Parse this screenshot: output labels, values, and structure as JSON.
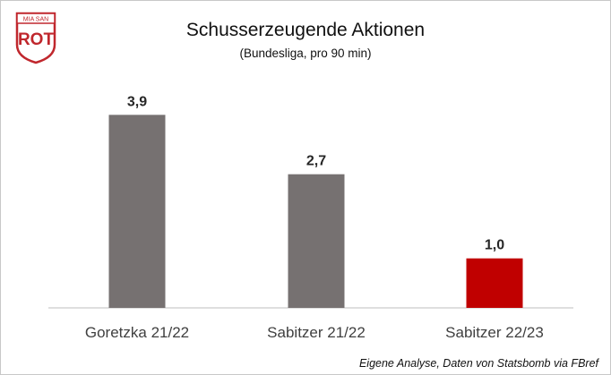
{
  "logo": {
    "top_text": "MIA SAN",
    "main_text": "ROT",
    "color": "#c0272d"
  },
  "chart_data": {
    "type": "bar",
    "title": "Schusserzeugende Aktionen",
    "subtitle": "(Bundesliga, pro 90 min)",
    "categories": [
      "Goretzka 21/22",
      "Sabitzer 21/22",
      "Sabitzer 22/23"
    ],
    "values": [
      3.9,
      2.7,
      1.0
    ],
    "value_labels": [
      "3,9",
      "2,7",
      "1,0"
    ],
    "colors": [
      "#767171",
      "#767171",
      "#c00000"
    ],
    "ylim": [
      0,
      4.5
    ],
    "grid": false,
    "legend": "none"
  },
  "source_note": "Eigene Analyse, Daten von Statsbomb via FBref"
}
